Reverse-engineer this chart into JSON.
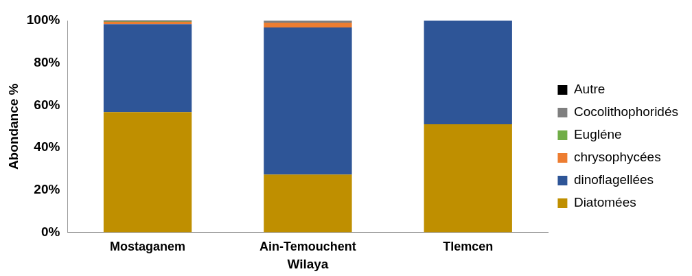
{
  "chart_data": {
    "type": "bar",
    "stacked": true,
    "xlabel": "Wilaya",
    "ylabel": "Abondance %",
    "categories": [
      "Mostaganem",
      "Ain-Temouchent",
      "Tlemcen"
    ],
    "series": [
      {
        "name": "Diatomées",
        "color": "#bf8f00",
        "values": [
          56.8,
          27.3,
          51.1
        ]
      },
      {
        "name": "dinoflagellées",
        "color": "#2e5597",
        "values": [
          41.5,
          69.5,
          48.9
        ]
      },
      {
        "name": "chrysophycées",
        "color": "#ed7d31",
        "values": [
          1.1,
          2.2,
          0
        ]
      },
      {
        "name": "Eugléne",
        "color": "#70ad47",
        "values": [
          0.3,
          0,
          0
        ]
      },
      {
        "name": "Cocolithophoridés",
        "color": "#7f7f7f",
        "values": [
          0,
          1,
          0
        ]
      },
      {
        "name": "Autre",
        "color": "#000000",
        "values": [
          0.3,
          0,
          0
        ]
      }
    ],
    "ylim": [
      0,
      100
    ],
    "yticks": [
      {
        "value": 0,
        "label": "0%"
      },
      {
        "value": 20,
        "label": "20%"
      },
      {
        "value": 40,
        "label": "40%"
      },
      {
        "value": 60,
        "label": "60%"
      },
      {
        "value": 80,
        "label": "80%"
      },
      {
        "value": 100,
        "label": "100%"
      }
    ],
    "grid": false,
    "legend": "right"
  }
}
